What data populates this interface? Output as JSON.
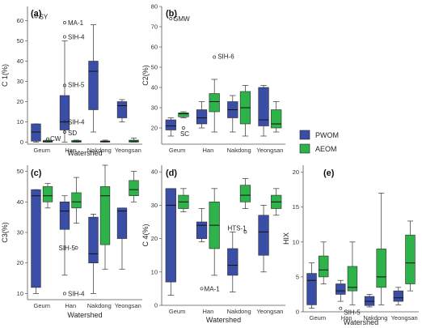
{
  "legend": {
    "items": [
      {
        "label": "PWOM",
        "color": "#3b4ea6"
      },
      {
        "label": "AEOM",
        "color": "#2db34a"
      }
    ]
  },
  "colors": {
    "pwom": "#3b4ea6",
    "aeom": "#2db34a",
    "whisker": "#333333"
  },
  "chart_data": [
    {
      "type": "box",
      "panel": "(a)",
      "xlabel": "Watershed",
      "ylabel": "C 1(%)",
      "ylim": [
        -1,
        67
      ],
      "yticks": [
        0,
        10,
        20,
        30,
        40,
        50,
        60
      ],
      "categories": [
        "Geum",
        "Han",
        "Nakdong",
        "Yeongsan"
      ],
      "series": [
        {
          "name": "PWOM",
          "boxes": [
            {
              "cat": "Geum",
              "min": 0,
              "q1": 0.5,
              "median": 5,
              "q3": 9,
              "max": 9
            },
            {
              "cat": "Han",
              "min": 0,
              "q1": 6,
              "median": 10,
              "q3": 23,
              "max": 50
            },
            {
              "cat": "Nakdong",
              "min": 5,
              "q1": 16,
              "median": 35,
              "q3": 40,
              "max": 58
            },
            {
              "cat": "Yeongsan",
              "min": 10,
              "q1": 12,
              "median": 18,
              "q3": 20,
              "max": 21
            }
          ]
        },
        {
          "name": "AEOM",
          "boxes": [
            {
              "cat": "Geum",
              "min": 0,
              "q1": 0,
              "median": 0.3,
              "q3": 0.8,
              "max": 1
            },
            {
              "cat": "Han",
              "min": 0,
              "q1": 0,
              "median": 0.3,
              "q3": 0.8,
              "max": 1
            },
            {
              "cat": "Nakdong",
              "min": 0,
              "q1": 0,
              "median": 0.3,
              "q3": 0.6,
              "max": 1
            },
            {
              "cat": "Yeongsan",
              "min": 0,
              "q1": 0,
              "median": 0.5,
              "q3": 1,
              "max": 2
            }
          ]
        }
      ],
      "outliers": [
        {
          "cat": "Geum",
          "series": "PWOM",
          "value": 62,
          "label": "SY"
        },
        {
          "cat": "Geum",
          "series": "AEOM",
          "value": 1.5,
          "label": "CW"
        },
        {
          "cat": "Han",
          "series": "PWOM",
          "value": 59,
          "label": "MA-1"
        },
        {
          "cat": "Han",
          "series": "PWOM",
          "value": 52,
          "label": "SIH-4"
        },
        {
          "cat": "Han",
          "series": "PWOM",
          "value": 28,
          "label": "SIH-5"
        },
        {
          "cat": "Han",
          "series": "PWOM",
          "value": 10,
          "label": "SIH-4"
        },
        {
          "cat": "Han",
          "series": "PWOM",
          "value": 5,
          "label": "SD"
        }
      ]
    },
    {
      "type": "box",
      "panel": "(b)",
      "xlabel": "",
      "ylabel": "C2(%)",
      "ylim": [
        12,
        80
      ],
      "yticks": [
        20,
        30,
        40,
        50,
        60,
        70,
        80
      ],
      "categories": [
        "Geum",
        "Han",
        "Nakdong",
        "Yeongsan"
      ],
      "series": [
        {
          "name": "PWOM",
          "boxes": [
            {
              "cat": "Geum",
              "min": 16,
              "q1": 19,
              "median": 21,
              "q3": 24,
              "max": 25
            },
            {
              "cat": "Han",
              "min": 20,
              "q1": 22,
              "median": 25,
              "q3": 29,
              "max": 33
            },
            {
              "cat": "Nakdong",
              "min": 18,
              "q1": 25,
              "median": 29,
              "q3": 33,
              "max": 36
            },
            {
              "cat": "Yeongsan",
              "min": 16,
              "q1": 21,
              "median": 24,
              "q3": 40,
              "max": 41
            }
          ]
        },
        {
          "name": "AEOM",
          "boxes": [
            {
              "cat": "Geum",
              "min": 25,
              "q1": 25.5,
              "median": 27,
              "q3": 27.5,
              "max": 28
            },
            {
              "cat": "Han",
              "min": 18,
              "q1": 28,
              "median": 33,
              "q3": 37,
              "max": 44
            },
            {
              "cat": "Nakdong",
              "min": 16,
              "q1": 22,
              "median": 30,
              "q3": 38,
              "max": 41
            },
            {
              "cat": "Yeongsan",
              "min": 18,
              "q1": 20,
              "median": 22,
              "q3": 29,
              "max": 33
            }
          ]
        }
      ],
      "outliers": [
        {
          "cat": "Geum",
          "series": "PWOM",
          "value": 74,
          "label": "GMW"
        },
        {
          "cat": "Geum",
          "series": "AEOM",
          "value": 20,
          "label": "SC"
        },
        {
          "cat": "Han",
          "series": "AEOM",
          "value": 55,
          "label": "SIH-6"
        }
      ]
    },
    {
      "type": "box",
      "panel": "(c)",
      "xlabel": "Watershed",
      "ylabel": "C3(%)",
      "ylim": [
        8,
        52
      ],
      "yticks": [
        10,
        20,
        30,
        40,
        50
      ],
      "categories": [
        "Geum",
        "Han",
        "Nakdong",
        "Yeongsan"
      ],
      "series": [
        {
          "name": "PWOM",
          "boxes": [
            {
              "cat": "Geum",
              "min": 10,
              "q1": 12,
              "median": 42,
              "q3": 44,
              "max": 44
            },
            {
              "cat": "Han",
              "min": 16,
              "q1": 31,
              "median": 37,
              "q3": 40,
              "max": 42
            },
            {
              "cat": "Nakdong",
              "min": 10,
              "q1": 20,
              "median": 23,
              "q3": 35,
              "max": 36
            },
            {
              "cat": "Yeongsan",
              "min": 18,
              "q1": 28,
              "median": 37,
              "q3": 38,
              "max": 38
            }
          ]
        },
        {
          "name": "AEOM",
          "boxes": [
            {
              "cat": "Geum",
              "min": 38,
              "q1": 40,
              "median": 42,
              "q3": 45,
              "max": 46
            },
            {
              "cat": "Han",
              "min": 33,
              "q1": 38,
              "median": 40,
              "q3": 43,
              "max": 48
            },
            {
              "cat": "Nakdong",
              "min": 18,
              "q1": 26,
              "median": 42,
              "q3": 45,
              "max": 52
            },
            {
              "cat": "Yeongsan",
              "min": 40,
              "q1": 42,
              "median": 44,
              "q3": 47,
              "max": 50
            }
          ]
        }
      ],
      "outliers": [
        {
          "cat": "Han",
          "series": "AEOM",
          "value": 25,
          "label": "SIH-5"
        },
        {
          "cat": "Han",
          "series": "PWOM",
          "value": 10,
          "label": "SIH-4"
        }
      ]
    },
    {
      "type": "box",
      "panel": "(d)",
      "xlabel": "Watershed",
      "ylabel": "C 4(%)",
      "ylim": [
        0,
        42
      ],
      "yticks": [
        0,
        10,
        20,
        30,
        40
      ],
      "categories": [
        "Geum",
        "Han",
        "Nakdong",
        "Yeongsan"
      ],
      "series": [
        {
          "name": "PWOM",
          "boxes": [
            {
              "cat": "Geum",
              "min": 3,
              "q1": 7,
              "median": 30,
              "q3": 35,
              "max": 35
            },
            {
              "cat": "Han",
              "min": 19,
              "q1": 20,
              "median": 24,
              "q3": 25,
              "max": 29
            },
            {
              "cat": "Nakdong",
              "min": 4,
              "q1": 9,
              "median": 12,
              "q3": 17,
              "max": 22
            },
            {
              "cat": "Yeongsan",
              "min": 10,
              "q1": 15,
              "median": 22,
              "q3": 27,
              "max": 30
            }
          ]
        },
        {
          "name": "AEOM",
          "boxes": [
            {
              "cat": "Geum",
              "min": 28,
              "q1": 29,
              "median": 31,
              "q3": 33,
              "max": 35
            },
            {
              "cat": "Han",
              "min": 9,
              "q1": 17,
              "median": 24,
              "q3": 31,
              "max": 35
            },
            {
              "cat": "Nakdong",
              "min": 29,
              "q1": 31,
              "median": 33,
              "q3": 36,
              "max": 38
            },
            {
              "cat": "Yeongsan",
              "min": 27,
              "q1": 29,
              "median": 31,
              "q3": 33,
              "max": 35
            }
          ]
        }
      ],
      "outliers": [
        {
          "cat": "Han",
          "series": "PWOM",
          "value": 5,
          "label": "MA-1"
        },
        {
          "cat": "Nakdong",
          "series": "AEOM",
          "value": 22,
          "label": "HTS-1"
        }
      ]
    },
    {
      "type": "box",
      "panel": "(e)",
      "xlabel": "Watershed",
      "ylabel": "HIX",
      "ylim": [
        0,
        21
      ],
      "yticks": [
        0,
        5,
        10,
        15,
        20
      ],
      "categories": [
        "Geum",
        "Han",
        "Nakdong",
        "Yeongsan"
      ],
      "series": [
        {
          "name": "PWOM",
          "boxes": [
            {
              "cat": "Geum",
              "min": 0.5,
              "q1": 1,
              "median": 4.5,
              "q3": 5.5,
              "max": 7
            },
            {
              "cat": "Han",
              "min": 1.5,
              "q1": 2.5,
              "median": 3,
              "q3": 4,
              "max": 4.5
            },
            {
              "cat": "Nakdong",
              "min": 0.7,
              "q1": 0.9,
              "median": 1.5,
              "q3": 2.2,
              "max": 2.5
            },
            {
              "cat": "Yeongsan",
              "min": 1,
              "q1": 1.5,
              "median": 2,
              "q3": 3,
              "max": 3.5
            }
          ]
        },
        {
          "name": "AEOM",
          "boxes": [
            {
              "cat": "Geum",
              "min": 4,
              "q1": 5,
              "median": 6,
              "q3": 8,
              "max": 10
            },
            {
              "cat": "Han",
              "min": 1,
              "q1": 3,
              "median": 3.5,
              "q3": 6.5,
              "max": 10
            },
            {
              "cat": "Nakdong",
              "min": 1,
              "q1": 3.5,
              "median": 5,
              "q3": 9,
              "max": 17
            },
            {
              "cat": "Yeongsan",
              "min": 3,
              "q1": 4,
              "median": 7,
              "q3": 11,
              "max": 13
            }
          ]
        }
      ],
      "outliers": [
        {
          "cat": "Han",
          "series": "PWOM",
          "value": 0.5,
          "label": "SIH-5"
        }
      ]
    }
  ]
}
